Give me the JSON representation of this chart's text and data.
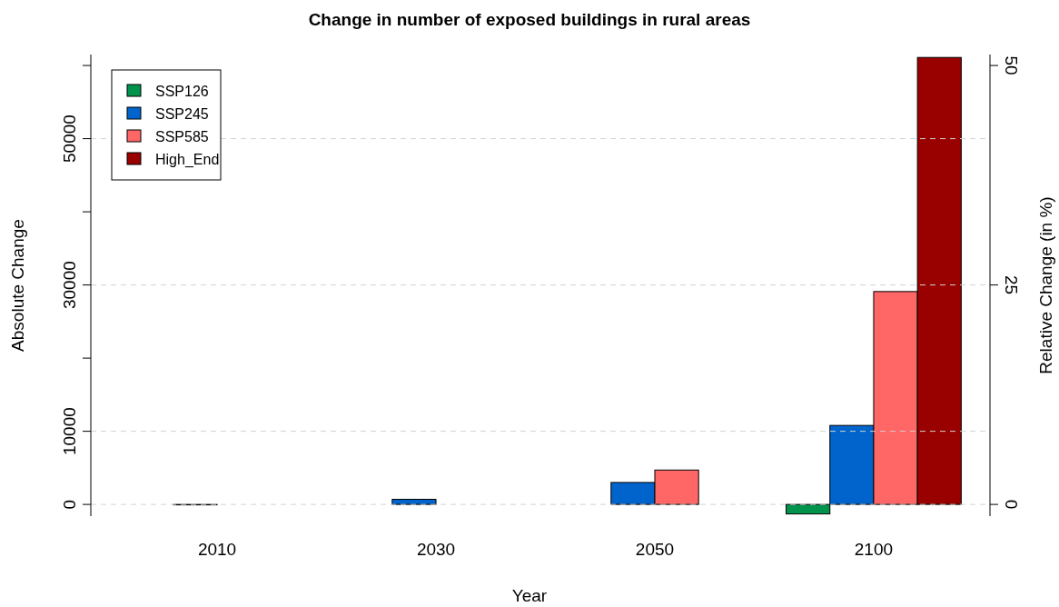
{
  "chart_data": {
    "type": "bar",
    "title": "Change in number of exposed buildings in rural areas",
    "xlabel": "Year",
    "ylabel": "Absolute Change",
    "y2label": "Relative Change (in %)",
    "categories": [
      "2010",
      "2030",
      "2050",
      "2100"
    ],
    "series": [
      {
        "name": "SSP126",
        "color": "#00934c",
        "values": [
          null,
          null,
          null,
          -1300
        ]
      },
      {
        "name": "SSP245",
        "color": "#0064cc",
        "values": [
          0,
          700,
          3000,
          10800
        ]
      },
      {
        "name": "SSP585",
        "color": "#ff6666",
        "values": [
          null,
          null,
          4700,
          29100
        ]
      },
      {
        "name": "High_End",
        "color": "#990000",
        "values": [
          null,
          null,
          null,
          61100
        ]
      }
    ],
    "ylim": [
      -1600,
      61500
    ],
    "yticks": [
      0,
      10000,
      {
        "value": 20000,
        "label": null
      },
      30000,
      {
        "value": 40000,
        "label": null
      },
      50000,
      {
        "value": 60000,
        "label": null
      }
    ],
    "y2lim": [
      -1.333,
      51.25
    ],
    "y2ticks": [
      0,
      25,
      50
    ],
    "grid": "y",
    "legend": "top left"
  }
}
